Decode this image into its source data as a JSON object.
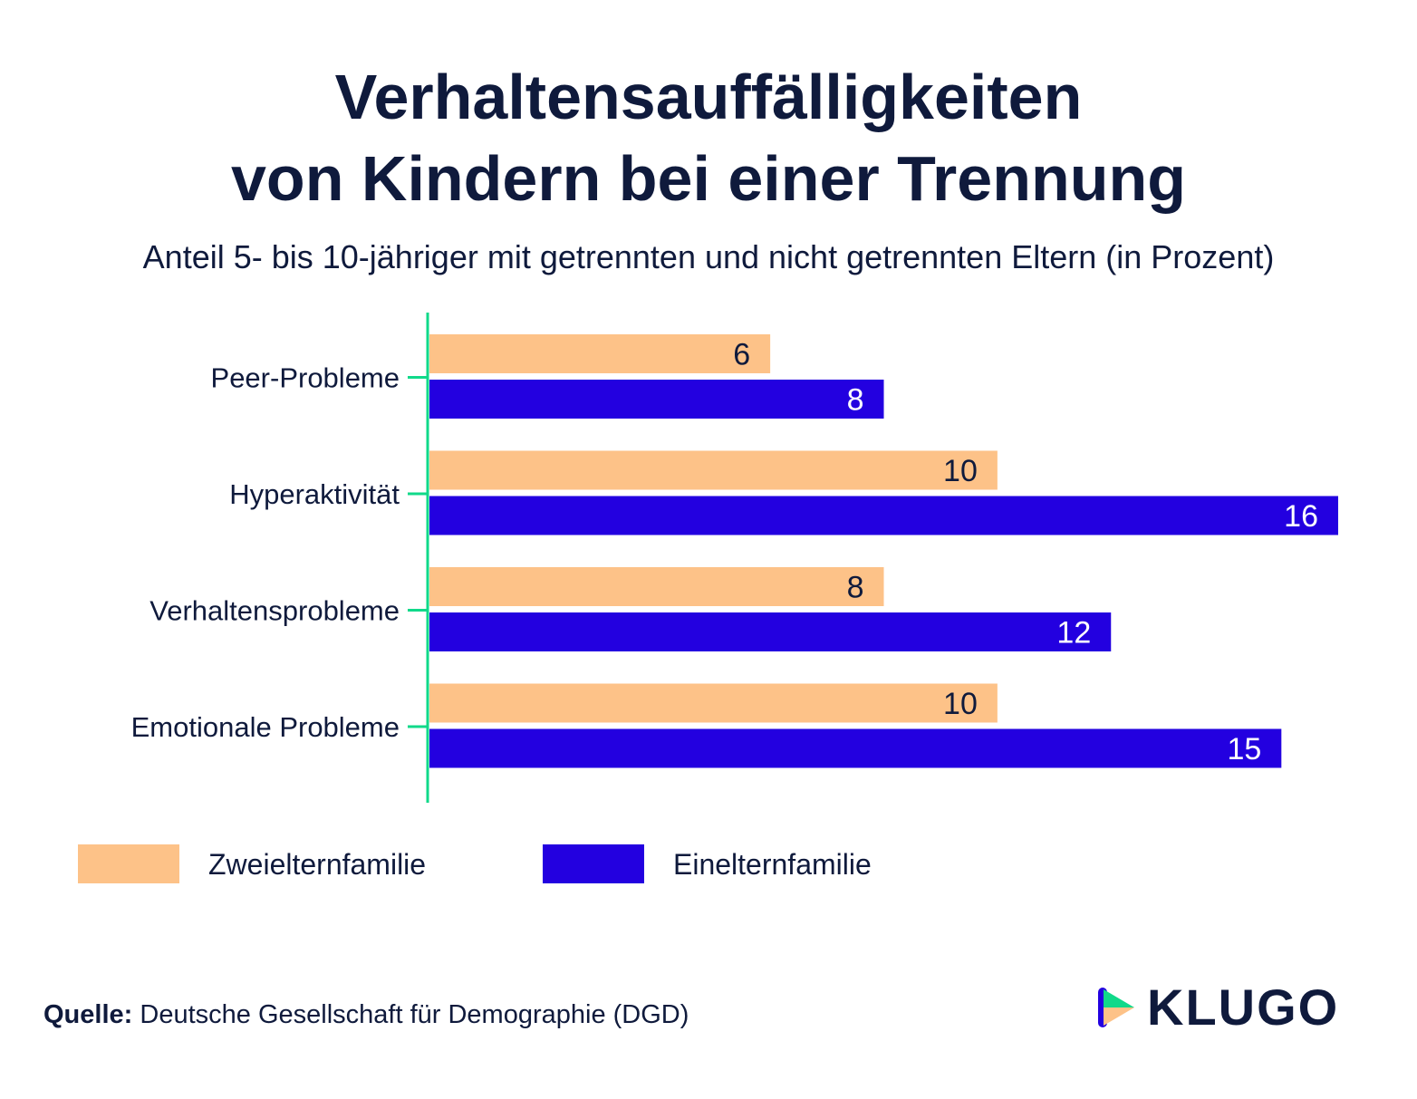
{
  "header": {
    "title_line1": "Verhaltensauffälligkeiten",
    "title_line2": "von Kindern bei einer Trennung",
    "subtitle": "Anteil 5- bis 10-jähriger mit getrennten und nicht getrennten Eltern (in Prozent)"
  },
  "chart_data": {
    "type": "bar",
    "orientation": "horizontal",
    "categories": [
      "Peer-Probleme",
      "Hyperaktivität",
      "Verhaltensprobleme",
      "Emotionale Probleme"
    ],
    "series": [
      {
        "name": "Zweielternfamilie",
        "values": [
          6,
          10,
          8,
          10
        ],
        "color": "#fdc288"
      },
      {
        "name": "Einelternfamilie",
        "values": [
          8,
          16,
          12,
          15
        ],
        "color": "#2300e0"
      }
    ],
    "xlim": [
      0,
      16
    ],
    "grid": false,
    "legend_position": "bottom-left",
    "axis_color": "#10d98a"
  },
  "source": {
    "label": "Quelle:",
    "text": "Deutsche Gesellschaft für Demographie (DGD)"
  },
  "logo": {
    "text": "KLUGO",
    "icon": "play-arrow-logo-icon"
  }
}
